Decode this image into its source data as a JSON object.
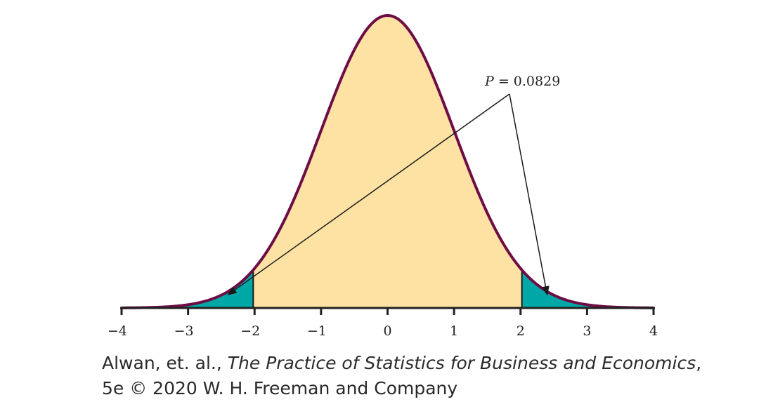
{
  "chart_data": {
    "type": "area",
    "title": "",
    "xlabel": "",
    "ylabel": "",
    "xlim": [
      -4,
      4
    ],
    "distribution": "standard normal",
    "curve_peak_at": 0,
    "x_ticks": [
      -4,
      -3,
      -2,
      -1,
      0,
      1,
      2,
      3,
      4
    ],
    "x_tick_labels": [
      "−4",
      "−3",
      "−2",
      "−1",
      "0",
      "1",
      "2",
      "3",
      "4"
    ],
    "shaded_regions": [
      {
        "name": "left tail",
        "from": -4,
        "to": -2.02,
        "color": "#00a7a7"
      },
      {
        "name": "center",
        "from": -2.02,
        "to": 2.02,
        "color": "#fde2a4"
      },
      {
        "name": "right tail",
        "from": 2.02,
        "to": 4,
        "color": "#00a7a7"
      }
    ],
    "boundaries": [
      -2.02,
      2.02
    ],
    "annotation": {
      "var": "P",
      "equals": " = 0.0829",
      "arrow_targets": [
        {
          "x": -2.4,
          "density": 0.018
        },
        {
          "x": 2.4,
          "density": 0.018
        }
      ]
    },
    "colors": {
      "curve": "#6e0d45",
      "tail_fill": "#00a7a7",
      "center_fill": "#fde2a4",
      "axis": "#222222"
    }
  },
  "caption": {
    "line1_prefix": "Alwan, et. al., ",
    "line1_title": "The Practice of Statistics for Business and Economics",
    "line1_suffix": ",",
    "line2": "5e © 2020 W. H. Freeman and Company"
  }
}
